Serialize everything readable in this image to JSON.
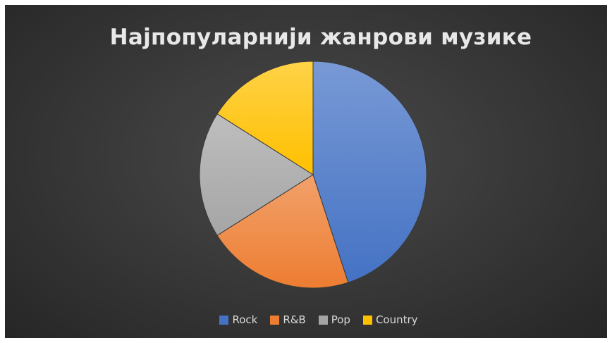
{
  "chart_data": {
    "type": "pie",
    "title": "Најпопуларнији жанрови музике",
    "categories": [
      "Rock",
      "R&B",
      "Pop",
      "Country"
    ],
    "values": [
      45,
      21,
      18,
      16
    ],
    "colors": [
      "#4472c4",
      "#ed7d31",
      "#a5a5a5",
      "#ffc000"
    ],
    "legend_position": "bottom",
    "start_angle_deg": 0,
    "direction": "clockwise"
  },
  "legend": {
    "items": [
      {
        "label": "Rock",
        "color": "#4472c4"
      },
      {
        "label": "R&B",
        "color": "#ed7d31"
      },
      {
        "label": "Pop",
        "color": "#a5a5a5"
      },
      {
        "label": "Country",
        "color": "#ffc000"
      }
    ]
  }
}
